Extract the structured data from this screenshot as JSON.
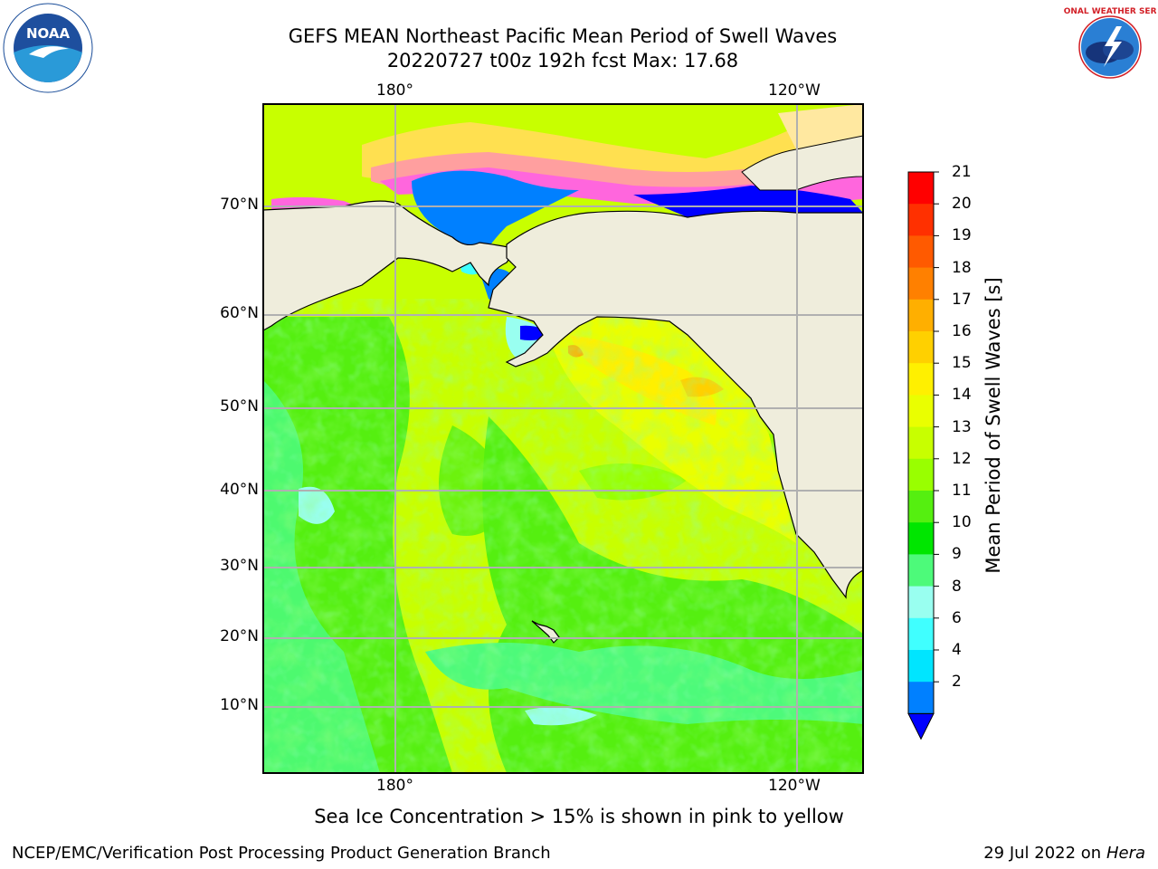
{
  "title": {
    "line1": "GEFS MEAN Northeast Pacific Mean Period of Swell Waves",
    "line2": "20220727 t00z 192h fcst   Max: 17.68"
  },
  "map": {
    "lon_labels": [
      "180°",
      "120°W"
    ],
    "lat_labels": [
      "70°N",
      "60°N",
      "50°N",
      "40°N",
      "30°N",
      "20°N",
      "10°N"
    ],
    "land_color": "#efeddc",
    "ocean_dominant_color": "#c8ff00"
  },
  "colorbar": {
    "label": "Mean Period of Swell Waves [s]",
    "ticks": [
      "21",
      "20",
      "19",
      "18",
      "17",
      "16",
      "15",
      "14",
      "13",
      "12",
      "11",
      "10",
      "9",
      "8",
      "6",
      "4",
      "2"
    ],
    "colors_top_to_bottom": [
      "#ff0000",
      "#ff3000",
      "#ff5a00",
      "#ff8000",
      "#ffaf00",
      "#ffd000",
      "#fff000",
      "#eaff00",
      "#c8ff00",
      "#99ff00",
      "#55ef10",
      "#00e600",
      "#4dfa7a",
      "#99fff0",
      "#40ffff",
      "#00e5ff",
      "#0080ff"
    ],
    "extend_color": "#0000ff"
  },
  "notes": {
    "ice": "Sea Ice Concentration > 15% is shown in pink to yellow"
  },
  "footer": {
    "left": "NCEP/EMC/Verification Post Processing Product Generation Branch",
    "date": "29 Jul 2022 on ",
    "host": "Hera"
  },
  "logos": {
    "left": "NOAA",
    "right": "NATIONAL WEATHER SERVICE"
  }
}
